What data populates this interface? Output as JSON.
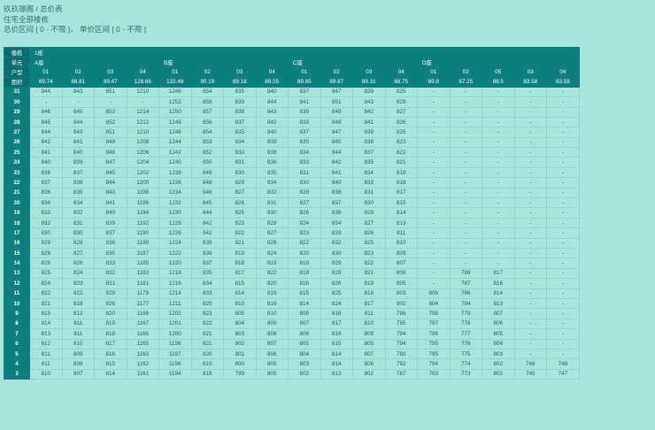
{
  "header": {
    "breadcrumb": "玖玖璟阁 / 总价表",
    "subtitle": "住宅全部楼栋",
    "filter": "总价区间 [ 0 - 不限 ]，   单价区间 [ 0 - 不限 ]"
  },
  "table": {
    "labels": {
      "building": "楼栋",
      "unit": "单元",
      "type": "户型",
      "area": "面积"
    },
    "building_name": "1栋",
    "units": [
      {
        "name": "A座",
        "cols": [
          "01",
          "02",
          "03",
          "04"
        ],
        "areas": [
          "89.74",
          "88.81",
          "89.47",
          "128.66"
        ]
      },
      {
        "name": "B座",
        "cols": [
          "01",
          "02",
          "03",
          "04"
        ],
        "areas": [
          "132.48",
          "90.19",
          "89.18",
          "89.55"
        ]
      },
      {
        "name": "C座",
        "cols": [
          "01",
          "02",
          "03",
          "04"
        ],
        "areas": [
          "89.65",
          "89.87",
          "89.31",
          "88.75"
        ]
      },
      {
        "name": "D座",
        "cols": [
          "01",
          "02",
          "05",
          "03",
          "04"
        ],
        "areas": [
          "89.8",
          "87.25",
          "88.5",
          "83.58",
          "83.58"
        ]
      }
    ],
    "rows": [
      {
        "floor": "31",
        "v": [
          "844",
          "843",
          "851",
          "1210",
          "1246",
          "854",
          "835",
          "840",
          "837",
          "847",
          "839",
          "825",
          "-",
          "-",
          "-",
          "-",
          "-"
        ]
      },
      {
        "floor": "30",
        "v": [
          "-",
          "-",
          "-",
          "-",
          "1252",
          "858",
          "839",
          "844",
          "841",
          "851",
          "843",
          "829",
          "-",
          "-",
          "-",
          "-",
          "-"
        ]
      },
      {
        "floor": "29",
        "v": [
          "846",
          "845",
          "853",
          "1214",
          "1250",
          "857",
          "838",
          "843",
          "839",
          "849",
          "842",
          "827",
          "-",
          "-",
          "-",
          "-",
          "-"
        ]
      },
      {
        "floor": "28",
        "v": [
          "845",
          "844",
          "852",
          "1212",
          "1248",
          "856",
          "837",
          "842",
          "838",
          "848",
          "841",
          "826",
          "-",
          "-",
          "-",
          "-",
          "-"
        ]
      },
      {
        "floor": "27",
        "v": [
          "844",
          "843",
          "851",
          "1210",
          "1246",
          "854",
          "835",
          "840",
          "837",
          "847",
          "839",
          "825",
          "-",
          "-",
          "-",
          "-",
          "-"
        ]
      },
      {
        "floor": "26",
        "v": [
          "842",
          "841",
          "849",
          "1208",
          "1244",
          "853",
          "834",
          "839",
          "835",
          "845",
          "838",
          "823",
          "-",
          "-",
          "-",
          "-",
          "-"
        ]
      },
      {
        "floor": "25",
        "v": [
          "841",
          "840",
          "848",
          "1206",
          "1242",
          "852",
          "833",
          "838",
          "834",
          "844",
          "837",
          "822",
          "-",
          "-",
          "-",
          "-",
          "-"
        ]
      },
      {
        "floor": "24",
        "v": [
          "840",
          "839",
          "847",
          "1204",
          "1240",
          "850",
          "831",
          "836",
          "833",
          "842",
          "835",
          "821",
          "-",
          "-",
          "-",
          "-",
          "-"
        ]
      },
      {
        "floor": "23",
        "v": [
          "838",
          "837",
          "845",
          "1202",
          "1238",
          "849",
          "830",
          "835",
          "831",
          "841",
          "834",
          "819",
          "-",
          "-",
          "-",
          "-",
          "-"
        ]
      },
      {
        "floor": "22",
        "v": [
          "837",
          "836",
          "844",
          "1200",
          "1236",
          "848",
          "829",
          "834",
          "830",
          "840",
          "833",
          "818",
          "-",
          "-",
          "-",
          "-",
          "-"
        ]
      },
      {
        "floor": "21",
        "v": [
          "836",
          "835",
          "843",
          "1198",
          "1234",
          "846",
          "827",
          "832",
          "828",
          "838",
          "831",
          "817",
          "-",
          "-",
          "-",
          "-",
          "-"
        ]
      },
      {
        "floor": "20",
        "v": [
          "834",
          "834",
          "841",
          "1196",
          "1232",
          "845",
          "826",
          "831",
          "827",
          "837",
          "830",
          "815",
          "-",
          "-",
          "-",
          "-",
          "-"
        ]
      },
      {
        "floor": "19",
        "v": [
          "833",
          "832",
          "840",
          "1194",
          "1230",
          "844",
          "825",
          "830",
          "826",
          "836",
          "829",
          "814",
          "-",
          "-",
          "-",
          "-",
          "-"
        ]
      },
      {
        "floor": "18",
        "v": [
          "832",
          "831",
          "839",
          "1192",
          "1228",
          "842",
          "823",
          "828",
          "824",
          "834",
          "827",
          "813",
          "-",
          "-",
          "-",
          "-",
          "-"
        ]
      },
      {
        "floor": "17",
        "v": [
          "830",
          "830",
          "837",
          "1190",
          "1226",
          "841",
          "822",
          "827",
          "823",
          "833",
          "826",
          "811",
          "-",
          "-",
          "-",
          "-",
          "-"
        ]
      },
      {
        "floor": "16",
        "v": [
          "829",
          "828",
          "836",
          "1188",
          "1224",
          "839",
          "821",
          "826",
          "822",
          "832",
          "825",
          "810",
          "-",
          "-",
          "-",
          "-",
          "-"
        ]
      },
      {
        "floor": "15",
        "v": [
          "828",
          "827",
          "835",
          "1187",
          "1222",
          "838",
          "819",
          "824",
          "820",
          "830",
          "823",
          "809",
          "-",
          "-",
          "-",
          "-",
          "-"
        ]
      },
      {
        "floor": "14",
        "v": [
          "826",
          "826",
          "833",
          "1185",
          "1220",
          "837",
          "818",
          "823",
          "819",
          "829",
          "822",
          "807",
          "-",
          "-",
          "-",
          "-",
          "-"
        ]
      },
      {
        "floor": "13",
        "v": [
          "825",
          "824",
          "832",
          "1183",
          "1218",
          "835",
          "817",
          "822",
          "818",
          "828",
          "821",
          "806",
          "-",
          "788",
          "817",
          "-",
          "-"
        ]
      },
      {
        "floor": "12",
        "v": [
          "824",
          "823",
          "831",
          "1181",
          "1216",
          "834",
          "815",
          "820",
          "816",
          "826",
          "819",
          "805",
          "-",
          "787",
          "816",
          "-",
          "-"
        ]
      },
      {
        "floor": "11",
        "v": [
          "822",
          "822",
          "829",
          "1179",
          "1214",
          "833",
          "814",
          "819",
          "815",
          "825",
          "818",
          "803",
          "806",
          "786",
          "814",
          "-",
          "-"
        ]
      },
      {
        "floor": "10",
        "v": [
          "821",
          "818",
          "826",
          "1177",
          "1211",
          "829",
          "810",
          "816",
          "814",
          "824",
          "817",
          "802",
          "804",
          "784",
          "813",
          "-",
          "-"
        ]
      },
      {
        "floor": "9",
        "v": [
          "815",
          "812",
          "820",
          "1168",
          "1202",
          "823",
          "805",
          "810",
          "808",
          "818",
          "811",
          "796",
          "798",
          "779",
          "807",
          "-",
          "-"
        ]
      },
      {
        "floor": "8",
        "v": [
          "814",
          "811",
          "819",
          "1167",
          "1201",
          "822",
          "804",
          "809",
          "807",
          "817",
          "810",
          "795",
          "797",
          "778",
          "806",
          "-",
          "-"
        ]
      },
      {
        "floor": "7",
        "v": [
          "813",
          "811",
          "818",
          "1166",
          "1200",
          "821",
          "803",
          "808",
          "806",
          "816",
          "809",
          "794",
          "796",
          "777",
          "805",
          "-",
          "-"
        ]
      },
      {
        "floor": "6",
        "v": [
          "812",
          "810",
          "817",
          "1165",
          "1198",
          "821",
          "802",
          "807",
          "805",
          "815",
          "808",
          "794",
          "795",
          "776",
          "804",
          "-",
          "-"
        ]
      },
      {
        "floor": "5",
        "v": [
          "811",
          "809",
          "816",
          "1163",
          "1197",
          "820",
          "801",
          "806",
          "804",
          "814",
          "807",
          "793",
          "795",
          "775",
          "803",
          "-",
          "-"
        ]
      },
      {
        "floor": "4",
        "v": [
          "811",
          "808",
          "815",
          "1162",
          "1196",
          "819",
          "800",
          "805",
          "803",
          "814",
          "806",
          "792",
          "794",
          "774",
          "802",
          "746",
          "748"
        ]
      },
      {
        "floor": "3",
        "v": [
          "810",
          "807",
          "814",
          "1161",
          "1194",
          "818",
          "799",
          "805",
          "802",
          "813",
          "802",
          "787",
          "793",
          "773",
          "802",
          "745",
          "747"
        ]
      }
    ]
  }
}
